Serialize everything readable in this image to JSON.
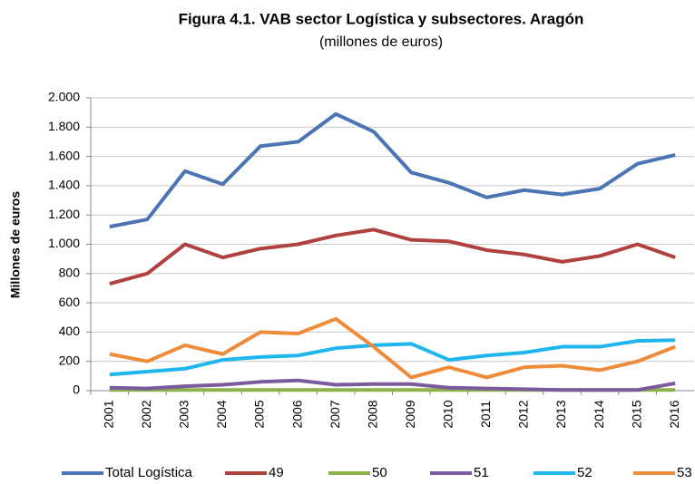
{
  "chart_data": {
    "type": "line",
    "title": "Figura 4.1. VAB sector Logística y subsectores. Aragón",
    "subtitle": "(millones de euros)",
    "y_label": "Millones de euros",
    "categories": [
      "2001",
      "2002",
      "2003",
      "2004",
      "2005",
      "2006",
      "2007",
      "2008",
      "2009",
      "2010",
      "2011",
      "2012",
      "2013",
      "2014",
      "2015",
      "2016"
    ],
    "series": [
      {
        "name": "Total Logística",
        "color": "#4a74b4",
        "values": [
          1120,
          1170,
          1500,
          1410,
          1670,
          1700,
          1890,
          1770,
          1490,
          1420,
          1320,
          1370,
          1340,
          1380,
          1550,
          1610
        ]
      },
      {
        "name": "49",
        "color": "#b0413e",
        "values": [
          730,
          800,
          1000,
          910,
          970,
          1000,
          1060,
          1100,
          1030,
          1020,
          960,
          930,
          880,
          920,
          1000,
          910
        ]
      },
      {
        "name": "50",
        "color": "#8cb04a",
        "values": [
          5,
          5,
          5,
          5,
          5,
          5,
          5,
          5,
          5,
          5,
          5,
          5,
          5,
          5,
          5,
          5
        ]
      },
      {
        "name": "51",
        "color": "#7a5b9e",
        "values": [
          20,
          15,
          30,
          40,
          60,
          70,
          40,
          45,
          45,
          20,
          15,
          10,
          5,
          5,
          5,
          50
        ]
      },
      {
        "name": "52",
        "color": "#1fb6ee",
        "values": [
          110,
          130,
          150,
          210,
          230,
          240,
          290,
          310,
          320,
          210,
          240,
          260,
          300,
          300,
          340,
          345
        ]
      },
      {
        "name": "53",
        "color": "#ef8c3c",
        "values": [
          250,
          200,
          310,
          250,
          400,
          390,
          490,
          300,
          90,
          160,
          90,
          160,
          170,
          140,
          200,
          300
        ]
      }
    ],
    "ylim": [
      0,
      2000
    ],
    "yticks": [
      0,
      200,
      400,
      600,
      800,
      {
        "value": 1000,
        "label": "1.000"
      },
      {
        "value": 1200,
        "label": "1.200"
      },
      {
        "value": 1400,
        "label": "1.400"
      },
      {
        "value": 1600,
        "label": "1.600"
      },
      {
        "value": 1800,
        "label": "1.800"
      },
      {
        "value": 2000,
        "label": "2.000"
      }
    ],
    "grid": true,
    "legend": "bottom"
  }
}
